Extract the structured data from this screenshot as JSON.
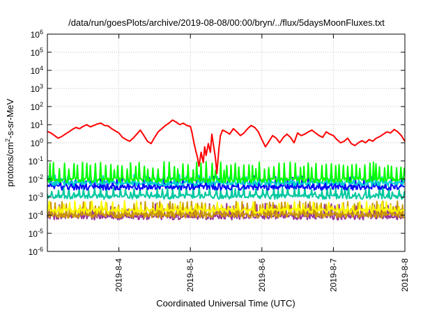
{
  "chart_data": {
    "type": "line",
    "title": "/data/run/goesPlots/archive/2019-08-08/00:00/bryn/../flux/5daysMoonFluxes.txt",
    "xlabel": "Coordinated Universal Time (UTC)",
    "ylabel": "protons/cm²-s-sr-MeV",
    "ylabel_base": "protons/cm",
    "ylabel_sup": "2",
    "ylabel_rest": "-s-sr-MeV",
    "y_scale": "log",
    "ylim": [
      1e-06,
      1000000.0
    ],
    "y_ticks": [
      {
        "base": "10",
        "exp": "-6",
        "value": -6
      },
      {
        "base": "10",
        "exp": "-5",
        "value": -5
      },
      {
        "base": "10",
        "exp": "-4",
        "value": -4
      },
      {
        "base": "10",
        "exp": "-3",
        "value": -3
      },
      {
        "base": "10",
        "exp": "-2",
        "value": -2
      },
      {
        "base": "10",
        "exp": "-1",
        "value": -1
      },
      {
        "base": "10",
        "exp": "0",
        "value": 0
      },
      {
        "base": "10",
        "exp": "1",
        "value": 1
      },
      {
        "base": "10",
        "exp": "2",
        "value": 2
      },
      {
        "base": "10",
        "exp": "3",
        "value": 3
      },
      {
        "base": "10",
        "exp": "4",
        "value": 4
      },
      {
        "base": "10",
        "exp": "5",
        "value": 5
      },
      {
        "base": "10",
        "exp": "6",
        "value": 6
      }
    ],
    "x_range_days": [
      "2019-08-03T00:00",
      "2019-08-08T00:00"
    ],
    "x_ticks": [
      {
        "label": "2019-8-4",
        "day": 4
      },
      {
        "label": "2019-8-5",
        "day": 5
      },
      {
        "label": "2019-8-6",
        "day": 6
      },
      {
        "label": "2019-8-7",
        "day": 7
      },
      {
        "label": "2019-8-8",
        "day": 8
      }
    ],
    "grid": true,
    "series": [
      {
        "color": "#ff0000",
        "points": [
          [
            3.0,
            4.2
          ],
          [
            3.05,
            3.5
          ],
          [
            3.1,
            2.5
          ],
          [
            3.15,
            1.8
          ],
          [
            3.2,
            2.2
          ],
          [
            3.25,
            3.0
          ],
          [
            3.3,
            4.0
          ],
          [
            3.35,
            5.5
          ],
          [
            3.4,
            7.0
          ],
          [
            3.45,
            6.0
          ],
          [
            3.5,
            8.0
          ],
          [
            3.55,
            10.0
          ],
          [
            3.6,
            7.5
          ],
          [
            3.65,
            9.0
          ],
          [
            3.7,
            11.0
          ],
          [
            3.75,
            12.0
          ],
          [
            3.8,
            9.0
          ],
          [
            3.85,
            8.5
          ],
          [
            3.9,
            6.0
          ],
          [
            3.95,
            4.5
          ],
          [
            4.0,
            3.5
          ],
          [
            4.05,
            2.0
          ],
          [
            4.1,
            1.5
          ],
          [
            4.15,
            1.2
          ],
          [
            4.2,
            1.8
          ],
          [
            4.25,
            3.0
          ],
          [
            4.3,
            5.0
          ],
          [
            4.35,
            2.5
          ],
          [
            4.4,
            1.2
          ],
          [
            4.45,
            0.9
          ],
          [
            4.5,
            2.0
          ],
          [
            4.55,
            4.0
          ],
          [
            4.6,
            6.0
          ],
          [
            4.65,
            9.0
          ],
          [
            4.7,
            12.0
          ],
          [
            4.75,
            18.0
          ],
          [
            4.8,
            14.0
          ],
          [
            4.85,
            10.0
          ],
          [
            4.9,
            12.0
          ],
          [
            4.95,
            9.0
          ],
          [
            5.0,
            8.0
          ],
          [
            5.02,
            4.0
          ],
          [
            5.05,
            1.0
          ],
          [
            5.08,
            0.3
          ],
          [
            5.1,
            0.15
          ],
          [
            5.12,
            0.05
          ],
          [
            5.15,
            0.3
          ],
          [
            5.18,
            0.08
          ],
          [
            5.2,
            0.6
          ],
          [
            5.22,
            0.2
          ],
          [
            5.25,
            0.9
          ],
          [
            5.28,
            0.3
          ],
          [
            5.3,
            3.0
          ],
          [
            5.32,
            0.9
          ],
          [
            5.35,
            0.15
          ],
          [
            5.37,
            0.02
          ],
          [
            5.4,
            0.5
          ],
          [
            5.42,
            2.5
          ],
          [
            5.45,
            5.0
          ],
          [
            5.5,
            4.0
          ],
          [
            5.55,
            3.0
          ],
          [
            5.6,
            6.0
          ],
          [
            5.65,
            4.0
          ],
          [
            5.7,
            2.5
          ],
          [
            5.75,
            3.5
          ],
          [
            5.8,
            6.0
          ],
          [
            5.85,
            9.0
          ],
          [
            5.9,
            7.0
          ],
          [
            5.95,
            4.0
          ],
          [
            6.0,
            1.5
          ],
          [
            6.05,
            0.6
          ],
          [
            6.1,
            1.2
          ],
          [
            6.15,
            2.5
          ],
          [
            6.2,
            1.8
          ],
          [
            6.25,
            1.0
          ],
          [
            6.3,
            2.0
          ],
          [
            6.35,
            3.0
          ],
          [
            6.4,
            2.0
          ],
          [
            6.45,
            1.0
          ],
          [
            6.5,
            3.5
          ],
          [
            6.55,
            2.5
          ],
          [
            6.6,
            3.0
          ],
          [
            6.65,
            4.0
          ],
          [
            6.7,
            5.0
          ],
          [
            6.75,
            3.5
          ],
          [
            6.8,
            2.5
          ],
          [
            6.85,
            2.0
          ],
          [
            6.9,
            4.0
          ],
          [
            6.95,
            3.0
          ],
          [
            7.0,
            2.5
          ],
          [
            7.05,
            1.5
          ],
          [
            7.1,
            1.0
          ],
          [
            7.15,
            1.2
          ],
          [
            7.2,
            1.8
          ],
          [
            7.25,
            0.9
          ],
          [
            7.3,
            0.7
          ],
          [
            7.35,
            1.0
          ],
          [
            7.4,
            1.3
          ],
          [
            7.45,
            1.0
          ],
          [
            7.5,
            1.5
          ],
          [
            7.55,
            1.2
          ],
          [
            7.6,
            1.8
          ],
          [
            7.65,
            2.2
          ],
          [
            7.7,
            3.0
          ],
          [
            7.75,
            4.0
          ],
          [
            7.8,
            3.5
          ],
          [
            7.85,
            5.5
          ],
          [
            7.9,
            4.0
          ],
          [
            7.95,
            2.5
          ],
          [
            8.0,
            1.2
          ]
        ]
      },
      {
        "color": "#00ff00",
        "baseline": 0.009,
        "spike": 0.06,
        "spike_every": 0.055,
        "seed": 11
      },
      {
        "color": "#00d0d0",
        "baseline": 0.006,
        "spike": 0.012,
        "spike_every": 0.08,
        "seed": 23
      },
      {
        "color": "#0000ff",
        "baseline": 0.0035,
        "spike": 0.01,
        "spike_every": 0.06,
        "seed": 37
      },
      {
        "color": "#00c8a0",
        "baseline": 0.0011,
        "spike": 0.003,
        "spike_every": 0.07,
        "seed": 41
      },
      {
        "color": "#ffff00",
        "baseline": 0.00018,
        "spike": 0.0004,
        "spike_every": 0.07,
        "seed": 53
      },
      {
        "color": "#cc9900",
        "baseline": 0.0001,
        "spike": 0.0004,
        "spike_every": 0.05,
        "seed": 67
      },
      {
        "color": "#993399",
        "baseline": 8e-05,
        "spike": 0.0003,
        "spike_every": 0.05,
        "seed": 79
      }
    ]
  }
}
